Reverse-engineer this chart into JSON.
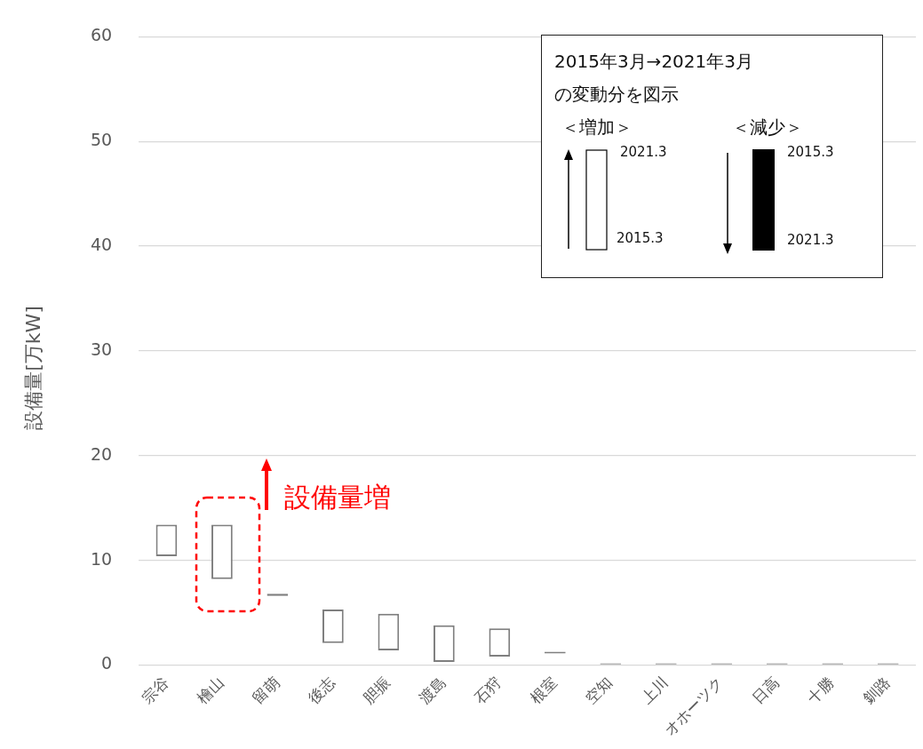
{
  "chart_data": {
    "type": "bar",
    "ylabel": "設備量[万kW]",
    "categories": [
      "宗谷",
      "檜山",
      "留萌",
      "後志",
      "胆振",
      "渡島",
      "石狩",
      "根室",
      "空知",
      "上川",
      "オホーツク",
      "日高",
      "十勝",
      "釧路"
    ],
    "base": [
      10.4,
      8.2,
      6.6,
      2.1,
      1.4,
      0.3,
      0.8,
      1.1,
      0,
      0,
      0,
      0,
      0,
      0
    ],
    "values": [
      3.0,
      5.2,
      0.2,
      3.2,
      3.5,
      3.5,
      2.7,
      0.1,
      0,
      0,
      0,
      0,
      0,
      0
    ],
    "colors": [
      "#ffffff",
      "#ffffff",
      "#7f7f7f",
      "#ffffff",
      "#ffffff",
      "#ffffff",
      "#ffffff",
      "#7f7f7f",
      "#7f7f7f",
      "#7f7f7f",
      "#7f7f7f",
      "#7f7f7f",
      "#7f7f7f",
      "#7f7f7f"
    ],
    "ylim": [
      0,
      60
    ],
    "yticks": [
      0,
      10,
      20,
      30,
      40,
      50,
      60
    ],
    "grid": "y",
    "legend": false,
    "annotations": [
      "2015年3月→2021年3月",
      "の変動分を図示",
      "＜増加＞",
      "2021.3",
      "2015.3",
      "＜減少＞",
      "2015.3",
      "2021.3",
      "設備量増"
    ]
  }
}
